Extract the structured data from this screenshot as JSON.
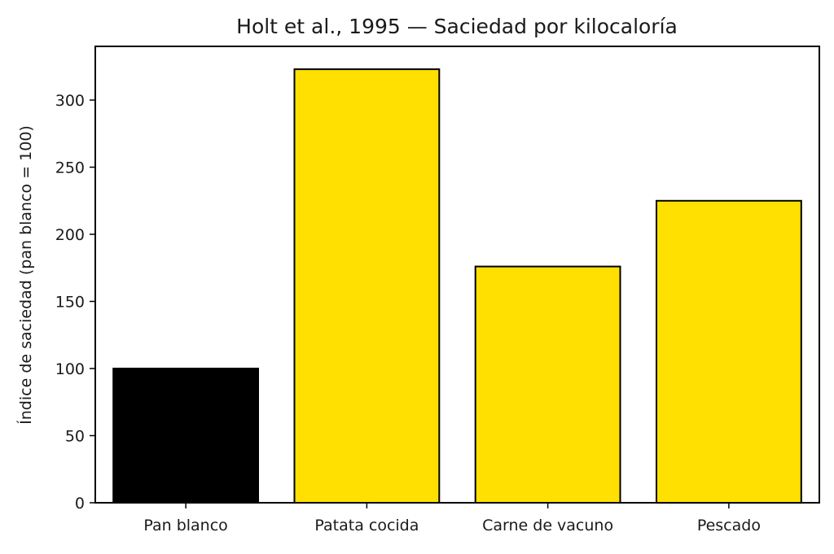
{
  "chart_data": {
    "type": "bar",
    "title": "Holt et al., 1995 — Saciedad por kilocaloría",
    "xlabel": "",
    "ylabel": "Índice de saciedad (pan blanco = 100)",
    "categories": [
      "Pan blanco",
      "Patata cocida",
      "Carne de vacuno",
      "Pescado"
    ],
    "values": [
      100,
      323,
      176,
      225
    ],
    "bar_colors": [
      "#000000",
      "#FFE000",
      "#FFE000",
      "#FFE000"
    ],
    "edge_color": "#000000",
    "ylim": [
      0,
      340
    ],
    "yticks": [
      0,
      50,
      100,
      150,
      200,
      250,
      300
    ],
    "ytick_labels": [
      "0",
      "50",
      "100",
      "150",
      "200",
      "250",
      "300"
    ],
    "grid": false,
    "legend": "none"
  }
}
